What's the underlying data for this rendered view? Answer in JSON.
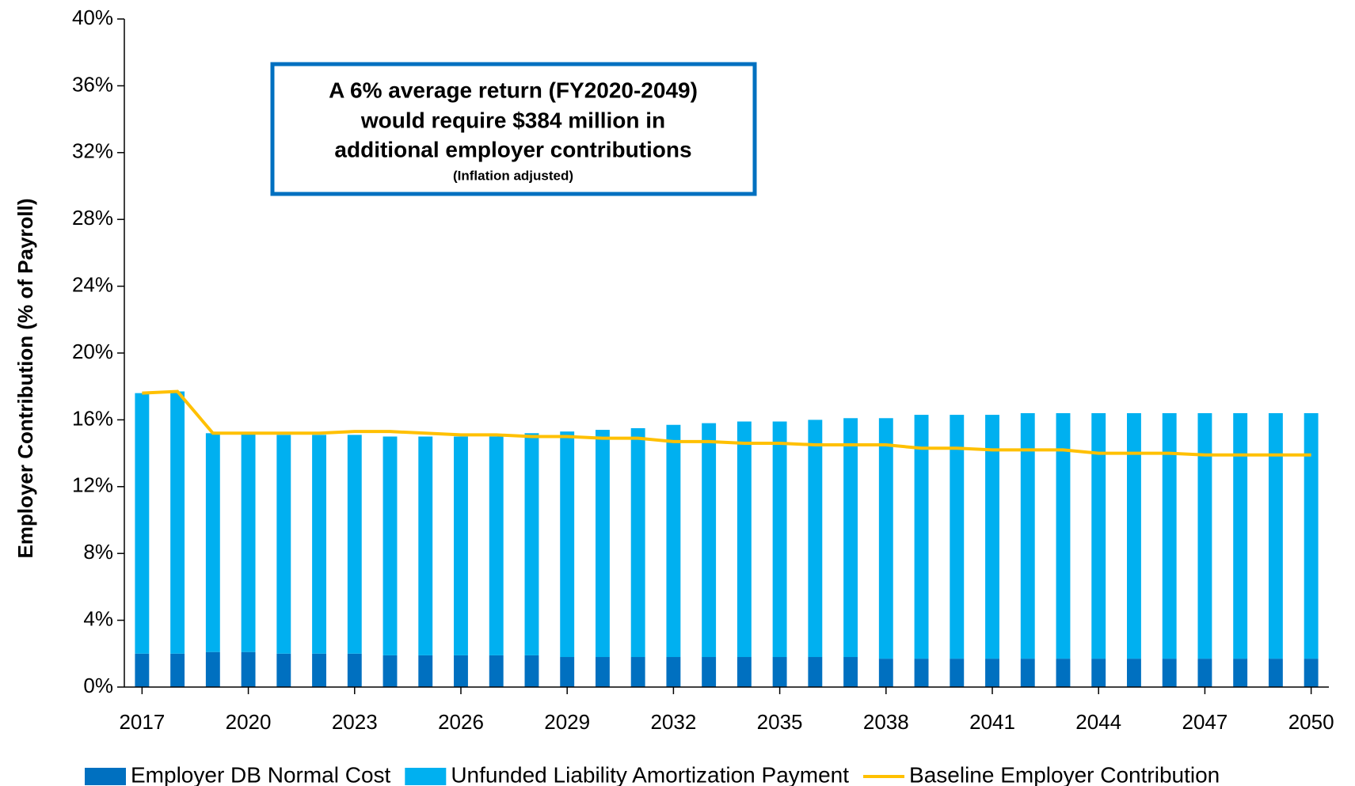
{
  "chart_data": {
    "type": "bar",
    "stacked": true,
    "y_label": "Employer Contribution (% of Payroll)",
    "annotation": [
      "A 6% average return (FY2020-2049)",
      "would require $384 million in",
      "additional employer contributions",
      "(Inflation adjusted)"
    ],
    "x": [
      2017,
      2018,
      2019,
      2020,
      2021,
      2022,
      2023,
      2024,
      2025,
      2026,
      2027,
      2028,
      2029,
      2030,
      2031,
      2032,
      2033,
      2034,
      2035,
      2036,
      2037,
      2038,
      2039,
      2040,
      2041,
      2042,
      2043,
      2044,
      2045,
      2046,
      2047,
      2048,
      2049,
      2050
    ],
    "xlim": [
      2016.5,
      2050.5
    ],
    "xticks": [
      2017,
      2020,
      2023,
      2026,
      2029,
      2032,
      2035,
      2038,
      2041,
      2044,
      2047,
      2050
    ],
    "ylim": [
      0,
      40
    ],
    "yticks": [
      {
        "value": 0,
        "label": "0%"
      },
      {
        "value": 4,
        "label": "4%"
      },
      {
        "value": 8,
        "label": "8%"
      },
      {
        "value": 12,
        "label": "12%"
      },
      {
        "value": 16,
        "label": "16%"
      },
      {
        "value": 20,
        "label": "20%"
      },
      {
        "value": 24,
        "label": "24%"
      },
      {
        "value": 28,
        "label": "28%"
      },
      {
        "value": 32,
        "label": "32%"
      },
      {
        "value": 36,
        "label": "36%"
      },
      {
        "value": 40,
        "label": "40%"
      }
    ],
    "legend": "bottom",
    "series": [
      {
        "name": "Employer DB Normal Cost",
        "type": "bar",
        "color": "#0070C0",
        "values": [
          2.0,
          2.0,
          2.1,
          2.1,
          2.0,
          2.0,
          2.0,
          1.9,
          1.9,
          1.9,
          1.9,
          1.9,
          1.8,
          1.8,
          1.8,
          1.8,
          1.8,
          1.8,
          1.8,
          1.8,
          1.8,
          1.7,
          1.7,
          1.7,
          1.7,
          1.7,
          1.7,
          1.7,
          1.7,
          1.7,
          1.7,
          1.7,
          1.7,
          1.7
        ]
      },
      {
        "name": "Unfunded Liability Amortization Payment",
        "type": "bar",
        "color": "#00B0F0",
        "values": [
          15.6,
          15.7,
          13.1,
          13.1,
          13.1,
          13.1,
          13.1,
          13.1,
          13.1,
          13.1,
          13.1,
          13.3,
          13.5,
          13.6,
          13.7,
          13.9,
          14.0,
          14.1,
          14.1,
          14.2,
          14.3,
          14.4,
          14.6,
          14.6,
          14.6,
          14.7,
          14.7,
          14.7,
          14.7,
          14.7,
          14.7,
          14.7,
          14.7,
          14.7
        ]
      },
      {
        "name": "Baseline Employer Contribution",
        "type": "line",
        "color": "#FFC000",
        "values": [
          17.6,
          17.7,
          15.2,
          15.2,
          15.2,
          15.2,
          15.3,
          15.3,
          15.2,
          15.1,
          15.1,
          15.0,
          15.0,
          14.9,
          14.9,
          14.7,
          14.7,
          14.6,
          14.6,
          14.5,
          14.5,
          14.5,
          14.3,
          14.3,
          14.2,
          14.2,
          14.2,
          14.0,
          14.0,
          14.0,
          13.9,
          13.9,
          13.9,
          13.9
        ]
      }
    ]
  }
}
